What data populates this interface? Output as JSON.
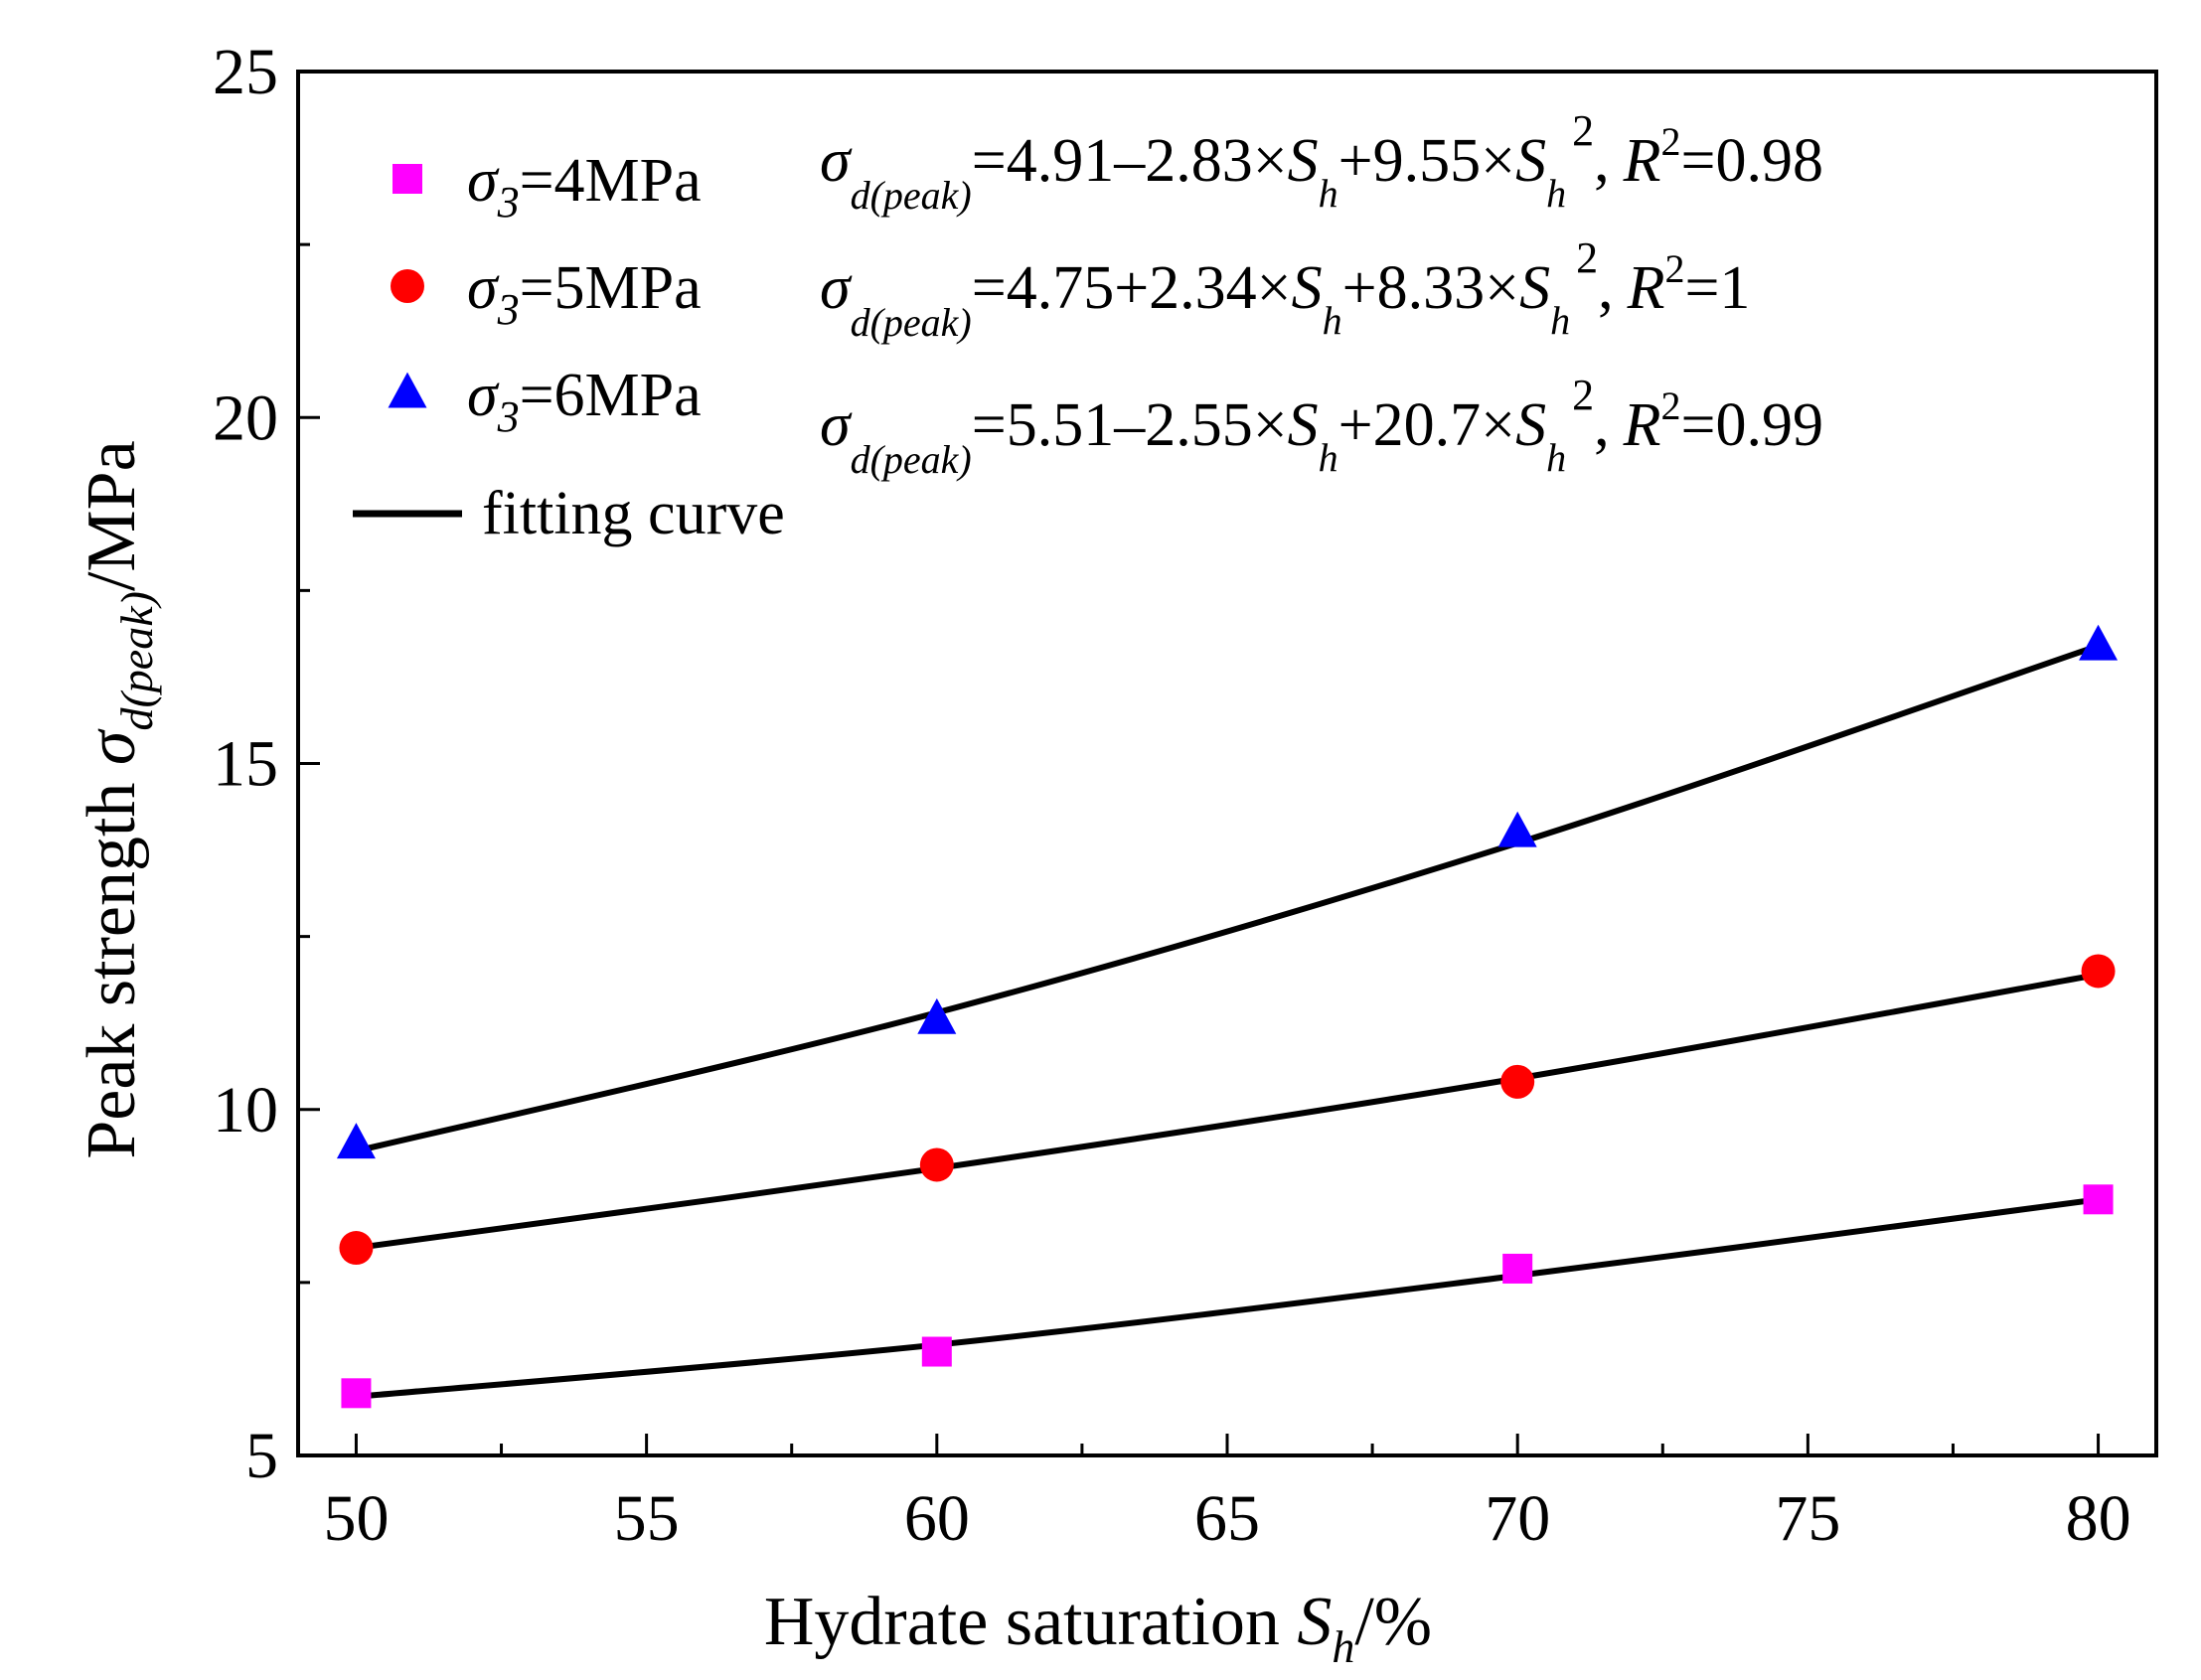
{
  "chart_data": {
    "type": "scatter",
    "title": "",
    "xlabel": {
      "main": "Hydrate saturation ",
      "var": "S",
      "sub": "h",
      "unit": "/%"
    },
    "ylabel": {
      "main": "Peak strength ",
      "var": "σ",
      "sub": "d(peak)",
      "unit": "/MPa"
    },
    "xlim": [
      49,
      81
    ],
    "ylim": [
      5,
      25
    ],
    "x_ticks": [
      50,
      55,
      60,
      65,
      70,
      75,
      80
    ],
    "y_ticks": [
      5,
      10,
      15,
      20,
      25
    ],
    "x": [
      50,
      60,
      70,
      80
    ],
    "series": [
      {
        "name": "σ3=4MPa",
        "label_var": "σ",
        "label_sub": "3",
        "label_rest": "=4MPa",
        "marker": "square",
        "color": "#ff00ff",
        "values": [
          5.9,
          6.5,
          7.7,
          8.7
        ],
        "fit": [
          5.85,
          6.6,
          7.6,
          8.7
        ],
        "equation": {
          "lhs_var": "σ",
          "lhs_sub": "d(peak)",
          "c0": "=4.91",
          "op1": "–2.83×",
          "op2": "+9.55×",
          "r2": "=0.98"
        }
      },
      {
        "name": "σ3=5MPa",
        "label_var": "σ",
        "label_sub": "3",
        "label_rest": "=5MPa",
        "marker": "circle",
        "color": "#ff0000",
        "values": [
          8.0,
          9.2,
          10.4,
          12.0
        ],
        "fit": [
          8.0,
          9.15,
          10.45,
          11.95
        ],
        "equation": {
          "lhs_var": "σ",
          "lhs_sub": "d(peak)",
          "c0": "=4.75",
          "op1": "+2.34×",
          "op2": "+8.33×",
          "r2": "=1"
        }
      },
      {
        "name": "σ3=6MPa",
        "label_var": "σ",
        "label_sub": "3",
        "label_rest": "=6MPa",
        "marker": "triangle",
        "color": "#0000ff",
        "values": [
          9.5,
          11.3,
          14.0,
          16.7
        ],
        "fit": [
          9.4,
          11.4,
          13.85,
          16.7
        ],
        "equation": {
          "lhs_var": "σ",
          "lhs_sub": "d(peak)",
          "c0": "=5.51",
          "op1": "–2.55×",
          "op2": "+20.7×",
          "r2": "=0.99"
        }
      }
    ],
    "fit_legend_label": "fitting curve",
    "equation_var": "S",
    "equation_sub": "h",
    "equation_sup": "2",
    "r2_var": "R",
    "r2_sup": "2",
    "comma": ",",
    "colors": {
      "axis": "#000000",
      "fit_line": "#000000"
    }
  }
}
